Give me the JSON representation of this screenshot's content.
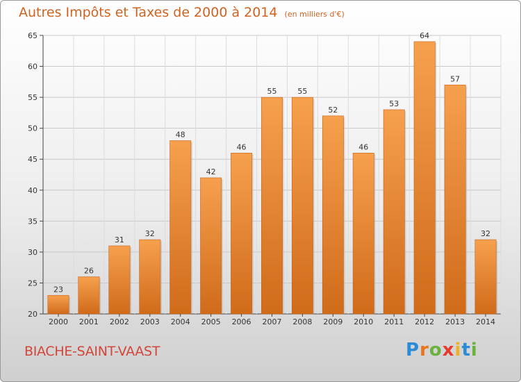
{
  "header": {
    "title": "Autres Impôts et Taxes de 2000 à 2014",
    "subtitle": "(en milliers d'€)"
  },
  "footer": {
    "commune": "BIACHE-SAINT-VAAST",
    "logo_letters": [
      "P",
      "r",
      "o",
      "x",
      "i",
      "t",
      "i"
    ]
  },
  "colors": {
    "bar_light": "#f6a04e",
    "bar_dark": "#d06b1a",
    "title": "#d2621f",
    "commune": "#d2463a"
  },
  "chart_data": {
    "type": "bar",
    "title": "Autres Impôts et Taxes de 2000 à 2014",
    "subtitle": "(en milliers d'€)",
    "categories": [
      "2000",
      "2001",
      "2002",
      "2003",
      "2004",
      "2005",
      "2006",
      "2007",
      "2008",
      "2009",
      "2010",
      "2011",
      "2012",
      "2013",
      "2014"
    ],
    "values": [
      23,
      26,
      31,
      32,
      48,
      42,
      46,
      55,
      55,
      52,
      46,
      53,
      64,
      57,
      32
    ],
    "ylim": [
      20,
      65
    ],
    "yticks": [
      20,
      25,
      30,
      35,
      40,
      45,
      50,
      55,
      60,
      65
    ],
    "grid": true,
    "xlabel": "",
    "ylabel": ""
  }
}
